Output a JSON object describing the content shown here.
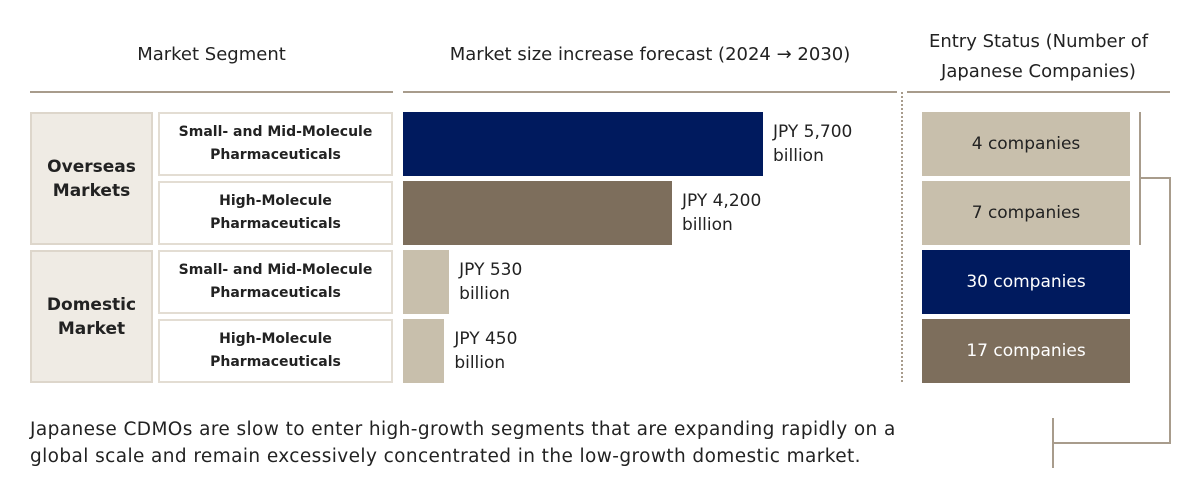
{
  "headers": {
    "segment": "Market Segment",
    "forecast": "Market size increase forecast (2024 → 2030)",
    "entry_line1": "Entry Status (Number of",
    "entry_line2": "Japanese Companies)"
  },
  "groups": [
    {
      "line1": "Overseas",
      "line2": "Markets"
    },
    {
      "line1": "Domestic",
      "line2": "Market"
    }
  ],
  "rows": [
    {
      "line1": "Small- and Mid-Molecule",
      "line2": "Pharmaceuticals"
    },
    {
      "line1": "High-Molecule",
      "line2": "Pharmaceuticals"
    },
    {
      "line1": "Small- and Mid-Molecule",
      "line2": "Pharmaceuticals"
    },
    {
      "line1": "High-Molecule",
      "line2": "Pharmaceuticals"
    }
  ],
  "chart_data": {
    "type": "bar",
    "orientation": "horizontal",
    "categories": [
      "Overseas Markets / Small- and Mid-Molecule Pharmaceuticals",
      "Overseas Markets / High-Molecule Pharmaceuticals",
      "Domestic Market / Small- and Mid-Molecule Pharmaceuticals",
      "Domestic Market / High-Molecule Pharmaceuticals"
    ],
    "values": [
      5700,
      4200,
      530,
      450
    ],
    "unit": "JPY billion",
    "labels": [
      {
        "line1": "JPY 5,700",
        "line2": "billion"
      },
      {
        "line1": "JPY 4,200",
        "line2": "billion"
      },
      {
        "line1": "JPY 530",
        "line2": "billion"
      },
      {
        "line1": "JPY 450",
        "line2": "billion"
      }
    ],
    "colors": [
      "#001a5e",
      "#7d6e5c",
      "#c8bfac",
      "#c8bfac"
    ]
  },
  "entry_status": [
    {
      "label": "4 companies",
      "value": 4,
      "color": "#c8bfac",
      "text_color": "#222222"
    },
    {
      "label": "7 companies",
      "value": 7,
      "color": "#c8bfac",
      "text_color": "#222222"
    },
    {
      "label": "30 companies",
      "value": 30,
      "color": "#001a5e",
      "text_color": "#ffffff"
    },
    {
      "label": "17 companies",
      "value": 17,
      "color": "#7d6e5c",
      "text_color": "#ffffff"
    }
  ],
  "footer": {
    "line1": "Japanese CDMOs are slow to enter high-growth segments that are expanding rapidly on a",
    "line2": "global scale and remain excessively concentrated in the low-growth domestic market."
  }
}
